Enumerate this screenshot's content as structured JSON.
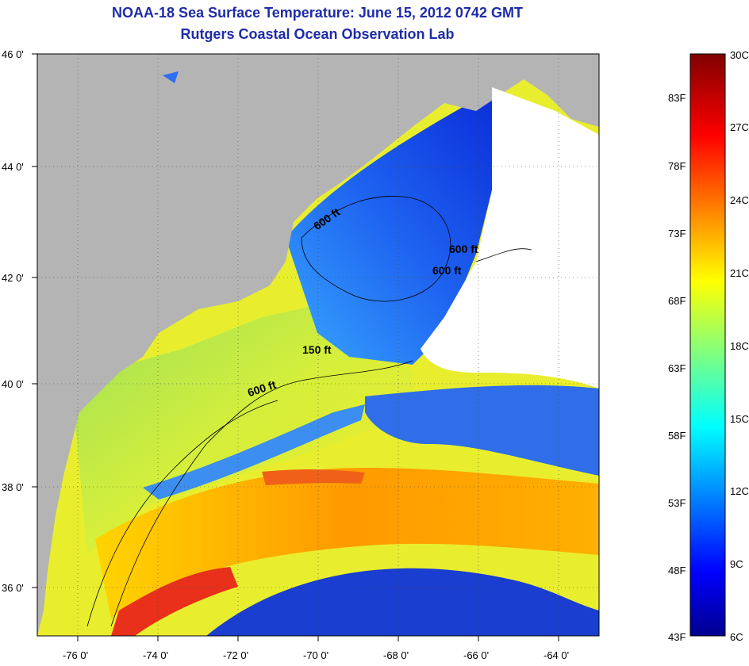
{
  "header": {
    "title": "NOAA-18 Sea Surface Temperature:  June 15, 2012 0742 GMT",
    "subtitle": "Rutgers Coastal Ocean Observation Lab"
  },
  "map": {
    "lat_ticks": [
      "46 0'",
      "44 0'",
      "42 0'",
      "40 0'",
      "38 0'",
      "36 0'"
    ],
    "lon_ticks": [
      "-76 0'",
      "-74 0'",
      "-72 0'",
      "-70 0'",
      "-68 0'",
      "-66 0'",
      "-64 0'"
    ],
    "contour_labels": [
      "600 ft",
      "600 ft",
      "600 ft",
      "150 ft",
      "600 ft"
    ],
    "land_color": "#b4b4b4",
    "cloud_color": "#ffffff"
  },
  "colorbar": {
    "celsius": [
      "30C",
      "27C",
      "24C",
      "21C",
      "18C",
      "15C",
      "12C",
      "9C",
      "6C"
    ],
    "fahrenheit": [
      "83F",
      "78F",
      "73F",
      "68F",
      "63F",
      "58F",
      "53F",
      "48F",
      "43F"
    ],
    "colormap": "jet"
  }
}
